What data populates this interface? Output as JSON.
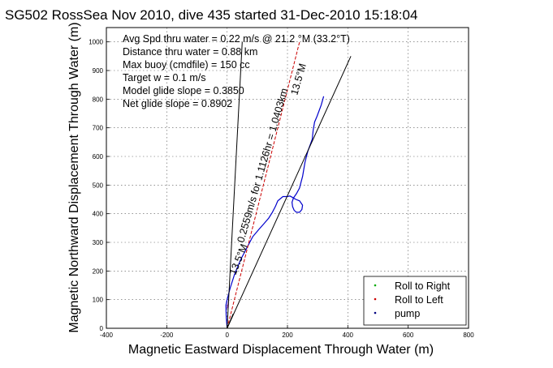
{
  "chart_data": {
    "type": "line",
    "title": "SG502 RossSea Nov 2010, dive 435 started 31-Dec-2010 15:18:04",
    "xlabel": "Magnetic Eastward Displacement Through Water (m)",
    "ylabel": "Magnetic Northward Displacement Through Water (m)",
    "xlim": [
      -400,
      800
    ],
    "ylim": [
      0,
      1050
    ],
    "x_ticks": [
      -400,
      -200,
      0,
      200,
      400,
      600,
      800
    ],
    "y_ticks": [
      0,
      100,
      200,
      300,
      400,
      500,
      600,
      700,
      800,
      900,
      1000
    ],
    "grid": true,
    "legend": {
      "placement": "bottom-right",
      "entries": [
        {
          "label": "Roll to Right",
          "color": "#00aa00",
          "marker": "dot"
        },
        {
          "label": "Roll to Left",
          "color": "#cc0000",
          "marker": "dot"
        },
        {
          "label": "pump",
          "color": "#000080",
          "marker": "dot"
        }
      ]
    },
    "annotations": [
      "Avg Spd thru water = 0.22 m/s @ 21.2 °M (33.2°T)",
      "Distance thru water = 0.88 km",
      "Max buoy (cmdfile) = 150 cc",
      "Target w = 0.1 m/s",
      "Model glide slope = 0.3850",
      "Net glide slope = 0.8902"
    ],
    "line_labels": [
      {
        "text": "0.2559m/s for 1.1126hr = 1.0403km",
        "angle_deg": -74
      },
      {
        "text": "13.5°M",
        "angle_deg": -74
      },
      {
        "text": "13.5°M",
        "angle_deg": -68
      }
    ],
    "series": [
      {
        "role": "track",
        "color": "#0000cc",
        "x": [
          0,
          -3,
          -4,
          0,
          10,
          25,
          45,
          65,
          85,
          105,
          122,
          138,
          150,
          160,
          168,
          185,
          200,
          208,
          215,
          228,
          240,
          250,
          248,
          240,
          230,
          222,
          217,
          215,
          220,
          230,
          240,
          245,
          250,
          254,
          258,
          263,
          268,
          275,
          282,
          285,
          290,
          298,
          305,
          312,
          320
        ],
        "y": [
          0,
          40,
          80,
          100,
          140,
          190,
          240,
          280,
          320,
          345,
          365,
          385,
          405,
          425,
          445,
          460,
          460,
          462,
          458,
          450,
          445,
          430,
          415,
          405,
          405,
          412,
          425,
          440,
          455,
          470,
          490,
          510,
          530,
          555,
          580,
          600,
          620,
          640,
          660,
          690,
          720,
          740,
          760,
          780,
          810
        ]
      },
      {
        "role": "pump",
        "color": "#8000a0",
        "x": [
          0,
          2,
          4,
          6
        ],
        "y": [
          70,
          80,
          90,
          100
        ]
      },
      {
        "role": "ref-line-dashed",
        "color": "#cc0000",
        "x": [
          0,
          240
        ],
        "y": [
          0,
          1000
        ]
      },
      {
        "role": "ref-line-model",
        "color": "#000000",
        "x": [
          0,
          50
        ],
        "y": [
          0,
          1000
        ]
      },
      {
        "role": "ref-line-net",
        "color": "#000000",
        "x": [
          0,
          410
        ],
        "y": [
          0,
          950
        ]
      },
      {
        "role": "ref-line-short",
        "color": "#000000",
        "x": [
          0,
          20
        ],
        "y": [
          0,
          50
        ]
      }
    ]
  }
}
